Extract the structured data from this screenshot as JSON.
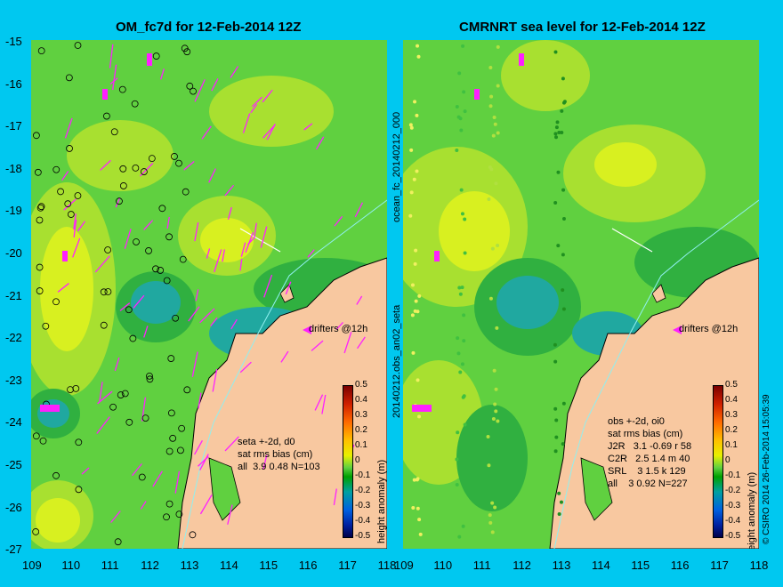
{
  "left": {
    "title": "OM_fc7d for 12-Feb-2014 12Z",
    "side_label": "ocean_fc_20140212_000",
    "annotation": "seta +-2d, d0\nsat rms bias (cm)\nall  3.9 0.48 N=103",
    "drifters_label": "drifters @12h"
  },
  "right": {
    "title": "CMRNRT sea level  for 12-Feb-2014 12Z",
    "side_label": "20140212.obs_an02_seta",
    "annotation": "obs +-2d, oi0\nsat rms bias (cm)\nJ2R   3.1 -0.69 r 58\nC2R   2.5 1.4 m 40\nSRL    3 1.5 k 129\nall    3 0.92 N=227",
    "drifters_label": "drifters @12h",
    "credit": "© CSIRO 2014   26-Feb-2014 15:05:39"
  },
  "y_ticks": [
    "-15",
    "-16",
    "-17",
    "-18",
    "-19",
    "-20",
    "-21",
    "-22",
    "-23",
    "-24",
    "-25",
    "-26",
    "-27"
  ],
  "x_ticks": [
    "109",
    "110",
    "111",
    "112",
    "113",
    "114",
    "115",
    "116",
    "117",
    "118"
  ],
  "colorbar": {
    "ticks": [
      "0.5",
      "0.4",
      "0.3",
      "0.2",
      "0.1",
      "0",
      "-0.1",
      "-0.2",
      "-0.3",
      "-0.4",
      "-0.5"
    ],
    "label": "height anomaly (m)"
  },
  "colors": {
    "background": "#00c8f0",
    "land": "#f8c8a0",
    "sea_mid": "#60d040",
    "arrow": "#ff20ff"
  }
}
